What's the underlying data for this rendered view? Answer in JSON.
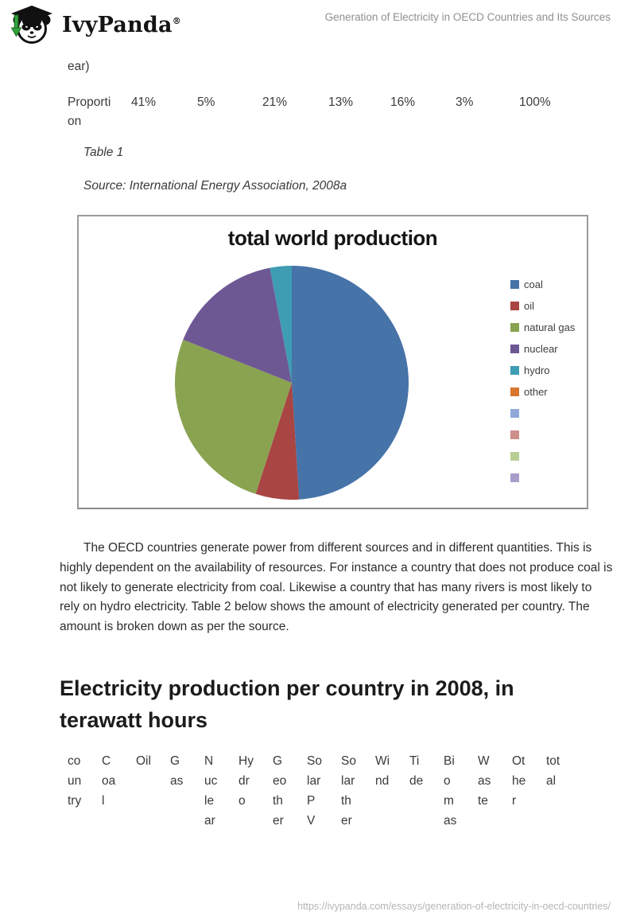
{
  "header": {
    "brand": "IvyPanda",
    "brand_reg": "®",
    "doc_title": "Generation of Electricity in OECD Countries and Its Sources"
  },
  "table1": {
    "partial_text": "ear)",
    "row_label": "Proporti\non",
    "values": [
      "41%",
      "5%",
      "21%",
      "13%",
      "16%",
      "3%",
      "100%"
    ],
    "caption": "Table 1",
    "source": "Source: International Energy Association, 2008a"
  },
  "chart_data": {
    "type": "pie",
    "title": "total world production",
    "legend_position": "right",
    "note": "slice values are percentages estimated from slice angles; no data labels shown",
    "series": [
      {
        "label": "coal",
        "value": 49,
        "color": "#4673A8"
      },
      {
        "label": "oil",
        "value": 6,
        "color": "#A94543"
      },
      {
        "label": "natural gas",
        "value": 26,
        "color": "#8AA351"
      },
      {
        "label": "nuclear",
        "value": 16,
        "color": "#6E5894"
      },
      {
        "label": "hydro",
        "value": 3,
        "color": "#3F9DB3"
      },
      {
        "label": "other",
        "value": 0,
        "color": "#D9772E"
      }
    ],
    "extra_legend_swatches": [
      {
        "label": "",
        "color": "#8FA8D8"
      },
      {
        "label": "",
        "color": "#CE8E8B"
      },
      {
        "label": "",
        "color": "#B9CE95"
      },
      {
        "label": "",
        "color": "#A89CC8"
      }
    ]
  },
  "paragraph": "The OECD countries generate power from different sources and in different quantities. This is highly dependent on the availability of resources. For instance a country that does not produce coal is not likely to generate electricity from coal. Likewise a country that has many rivers is most likely to rely on hydro electricity. Table 2 below shows the amount of electricity generated per country. The amount is broken down as per the source.",
  "section_heading": "Electricity production per country in 2008, in\nterawatt hours",
  "table2": {
    "headers": [
      "co\nun\ntry",
      "C\noa\nl",
      "Oil",
      "G\nas",
      "N\nuc\nle\nar",
      "Hy\ndr\no",
      "G\neo\nth\ner",
      "So\nlar\nP\nV",
      "So\nlar\nth\ner",
      "Wi\nnd",
      "Ti\nde",
      "Bi\no\nm\nas",
      "W\nas\nte",
      "Ot\nhe\nr",
      "tot\nal"
    ]
  },
  "footer": {
    "url": "https://ivypanda.com/essays/generation-of-electricity-in-oecd-countries/"
  }
}
